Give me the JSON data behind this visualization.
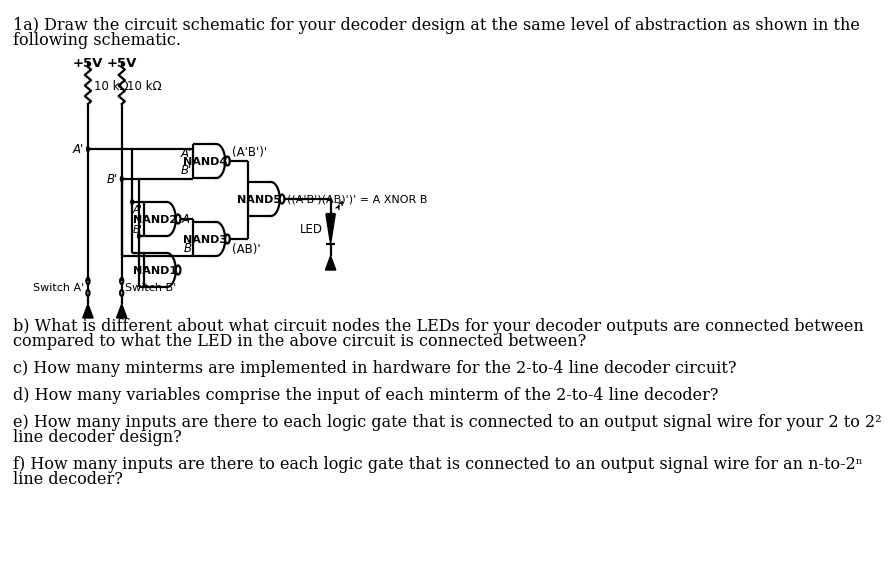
{
  "bg_color": "#ffffff",
  "text_color": "#000000",
  "fs_body": 11.5,
  "fs_small": 9.5,
  "fs_gate": 8.0,
  "fs_label": 8.5,
  "title_line1": "1a) Draw the circuit schematic for your decoder design at the same level of abstraction as shown in the",
  "title_line2": "following schematic.",
  "q_b_line1": "b) What is different about what circuit nodes the LEDs for your decoder outputs are connected between",
  "q_b_line2": "compared to what the LED in the above circuit is connected between?",
  "q_c": "c) How many minterms are implemented in hardware for the 2-to-4 line decoder circuit?",
  "q_d": "d) How many variables comprise the input of each minterm of the 2-to-4 line decoder?",
  "q_e_line1": "e) How many inputs are there to each logic gate that is connected to an output signal wire for your 2 to 2²",
  "q_e_line2": "line decoder design?",
  "q_f_line1": "f) How many inputs are there to each logic gate that is connected to an output signal wire for an n-to-2ⁿ",
  "q_f_line2": "line decoder?"
}
